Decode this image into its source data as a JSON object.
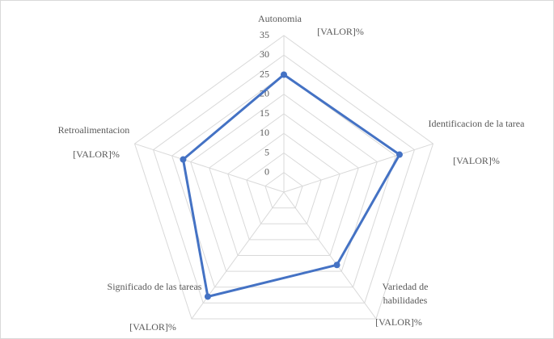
{
  "chart_data": {
    "type": "radar",
    "categories": [
      "Autonomia",
      "Identificacion de la tarea",
      "Variedad de habilidades",
      "Significado de las tareas",
      "Retroalimentacion"
    ],
    "series": [
      {
        "color": "#4472c4",
        "values": [
          25,
          26,
          18,
          28,
          22
        ],
        "value_labels": [
          "[VALOR]%",
          "[VALOR]%",
          "[VALOR]%",
          "[VALOR]%",
          "[VALOR]%"
        ]
      }
    ],
    "ylim": [
      -5,
      35
    ],
    "yticks": [
      0,
      5,
      10,
      15,
      20,
      25,
      30,
      35
    ],
    "grid": true
  }
}
